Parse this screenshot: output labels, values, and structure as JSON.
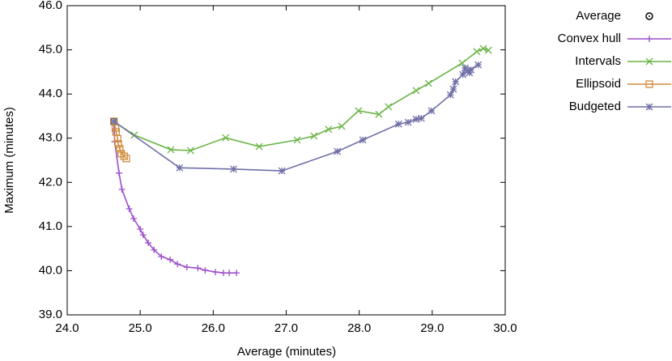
{
  "chart_data": {
    "type": "line",
    "x_label": "Average (minutes)",
    "y_label": "Maximum (minutes)",
    "xlim": [
      24,
      30
    ],
    "ylim": [
      39,
      46
    ],
    "xticks": [
      {
        "value": 24,
        "label": "24.0"
      },
      {
        "value": 25,
        "label": "25.0"
      },
      {
        "value": 26,
        "label": "26.0"
      },
      {
        "value": 27,
        "label": "27.0"
      },
      {
        "value": 28,
        "label": "28.0"
      },
      {
        "value": 29,
        "label": "29.0"
      },
      {
        "value": 30,
        "label": "30.0"
      }
    ],
    "yticks": [
      {
        "value": 39,
        "label": "39.0"
      },
      {
        "value": 40,
        "label": "40.0"
      },
      {
        "value": 41,
        "label": "41.0"
      },
      {
        "value": 42,
        "label": "42.0"
      },
      {
        "value": 43,
        "label": "43.0"
      },
      {
        "value": 44,
        "label": "44.0"
      },
      {
        "value": 45,
        "label": "45.0"
      },
      {
        "value": 46,
        "label": "46.0"
      }
    ],
    "legend": "outside-right",
    "series": [
      {
        "name": "Average",
        "color": "#000000",
        "marker": "circle",
        "show_line": false,
        "x": [
          24.64
        ],
        "values": [
          43.38
        ]
      },
      {
        "name": "Convex hull",
        "color": "#9c4fc9",
        "marker": "plus",
        "show_line": true,
        "x": [
          24.64,
          24.65,
          24.71,
          24.75,
          24.85,
          24.91,
          25.0,
          25.04,
          25.11,
          25.19,
          25.29,
          25.41,
          25.51,
          25.64,
          25.79,
          25.89,
          26.03,
          26.14,
          26.22,
          26.32
        ],
        "values": [
          43.38,
          42.92,
          42.21,
          41.84,
          41.4,
          41.18,
          40.94,
          40.81,
          40.63,
          40.47,
          40.32,
          40.25,
          40.15,
          40.08,
          40.06,
          40.01,
          39.97,
          39.95,
          39.95,
          39.95
        ]
      },
      {
        "name": "Intervals",
        "color": "#6ab446",
        "marker": "cross",
        "show_line": true,
        "x": [
          24.64,
          24.92,
          25.42,
          25.69,
          26.17,
          26.63,
          27.15,
          27.38,
          27.58,
          27.76,
          27.99,
          28.27,
          28.4,
          28.78,
          28.95,
          29.41,
          29.61,
          29.7,
          29.77
        ],
        "values": [
          43.38,
          43.07,
          42.74,
          42.72,
          43.01,
          42.81,
          42.96,
          43.05,
          43.2,
          43.27,
          43.62,
          43.54,
          43.71,
          44.08,
          44.24,
          44.7,
          44.96,
          45.03,
          44.99
        ]
      },
      {
        "name": "Ellipsoid",
        "color": "#d08c3c",
        "marker": "square",
        "show_line": true,
        "x": [
          24.64,
          24.66,
          24.67,
          24.69,
          24.7,
          24.72,
          24.74,
          24.78,
          24.81
        ],
        "values": [
          43.38,
          43.23,
          43.14,
          42.99,
          42.87,
          42.76,
          42.65,
          42.59,
          42.54
        ]
      },
      {
        "name": "Budgeted",
        "color": "#7070a8",
        "marker": "star",
        "show_line": true,
        "x": [
          24.64,
          25.54,
          26.28,
          26.94,
          27.7,
          28.05,
          28.54,
          28.67,
          28.78,
          28.85,
          28.99,
          29.25,
          29.29,
          29.32,
          29.42,
          29.45,
          29.49,
          29.51,
          29.53,
          29.63
        ],
        "values": [
          43.38,
          42.33,
          42.3,
          42.26,
          42.7,
          42.96,
          43.32,
          43.36,
          43.43,
          43.45,
          43.62,
          43.98,
          44.11,
          44.28,
          44.44,
          44.59,
          44.53,
          44.48,
          44.55,
          44.66
        ]
      }
    ]
  }
}
